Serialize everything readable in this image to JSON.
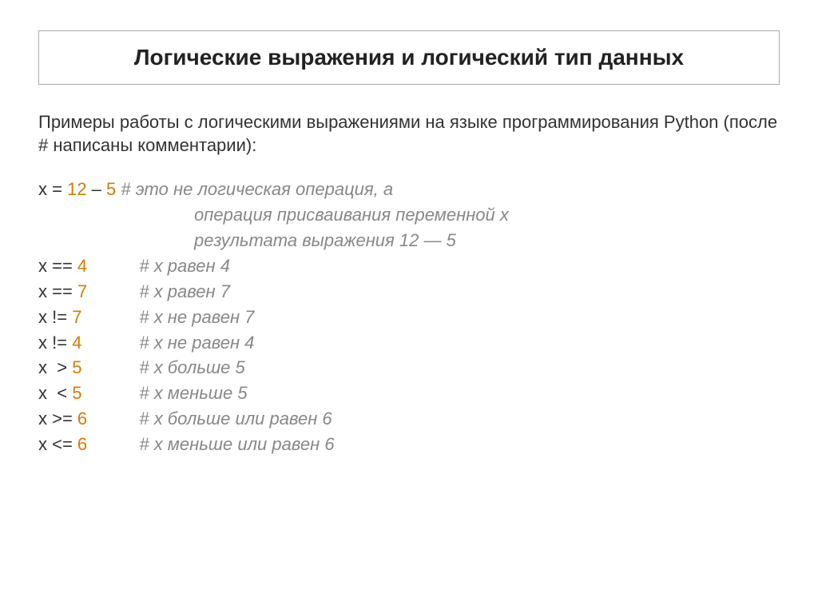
{
  "title": "Логические выражения и логический тип данных",
  "intro": "Примеры работы с логическими выражениями на языке программирования Python (после # написаны комментарии):",
  "colors": {
    "text": "#333333",
    "number": "#d97a00",
    "comment": "#888888",
    "border": "#aaaaaa",
    "background": "#ffffff"
  },
  "typography": {
    "font_family": "Verdana",
    "title_fontsize": 28,
    "body_fontsize": 22
  },
  "code": {
    "line1": {
      "expr_pre": "x = ",
      "n1": "12",
      "mid": " – ",
      "n2": "5",
      "comment": " # это не логическая операция, а",
      "cont1": "операция присваивания переменной x",
      "cont2": "результата выражения 12 — 5"
    },
    "lines": [
      {
        "expr": "x == ",
        "num": "4",
        "comment": "# x равен 4"
      },
      {
        "expr": "x == ",
        "num": "7",
        "comment": "# x равен 7"
      },
      {
        "expr": "x != ",
        "num": "7",
        "comment": "# x не равен 7"
      },
      {
        "expr": "x != ",
        "num": "4",
        "comment": "# x не равен 4"
      },
      {
        "expr": "x  > ",
        "num": "5",
        "comment": "# x больше 5"
      },
      {
        "expr": "x  < ",
        "num": "5",
        "comment": "# x меньше 5"
      },
      {
        "expr": "x >= ",
        "num": "6",
        "comment": "# x больше или равен 6"
      },
      {
        "expr": "x <= ",
        "num": "6",
        "comment": "# x меньше или равен 6"
      }
    ]
  }
}
